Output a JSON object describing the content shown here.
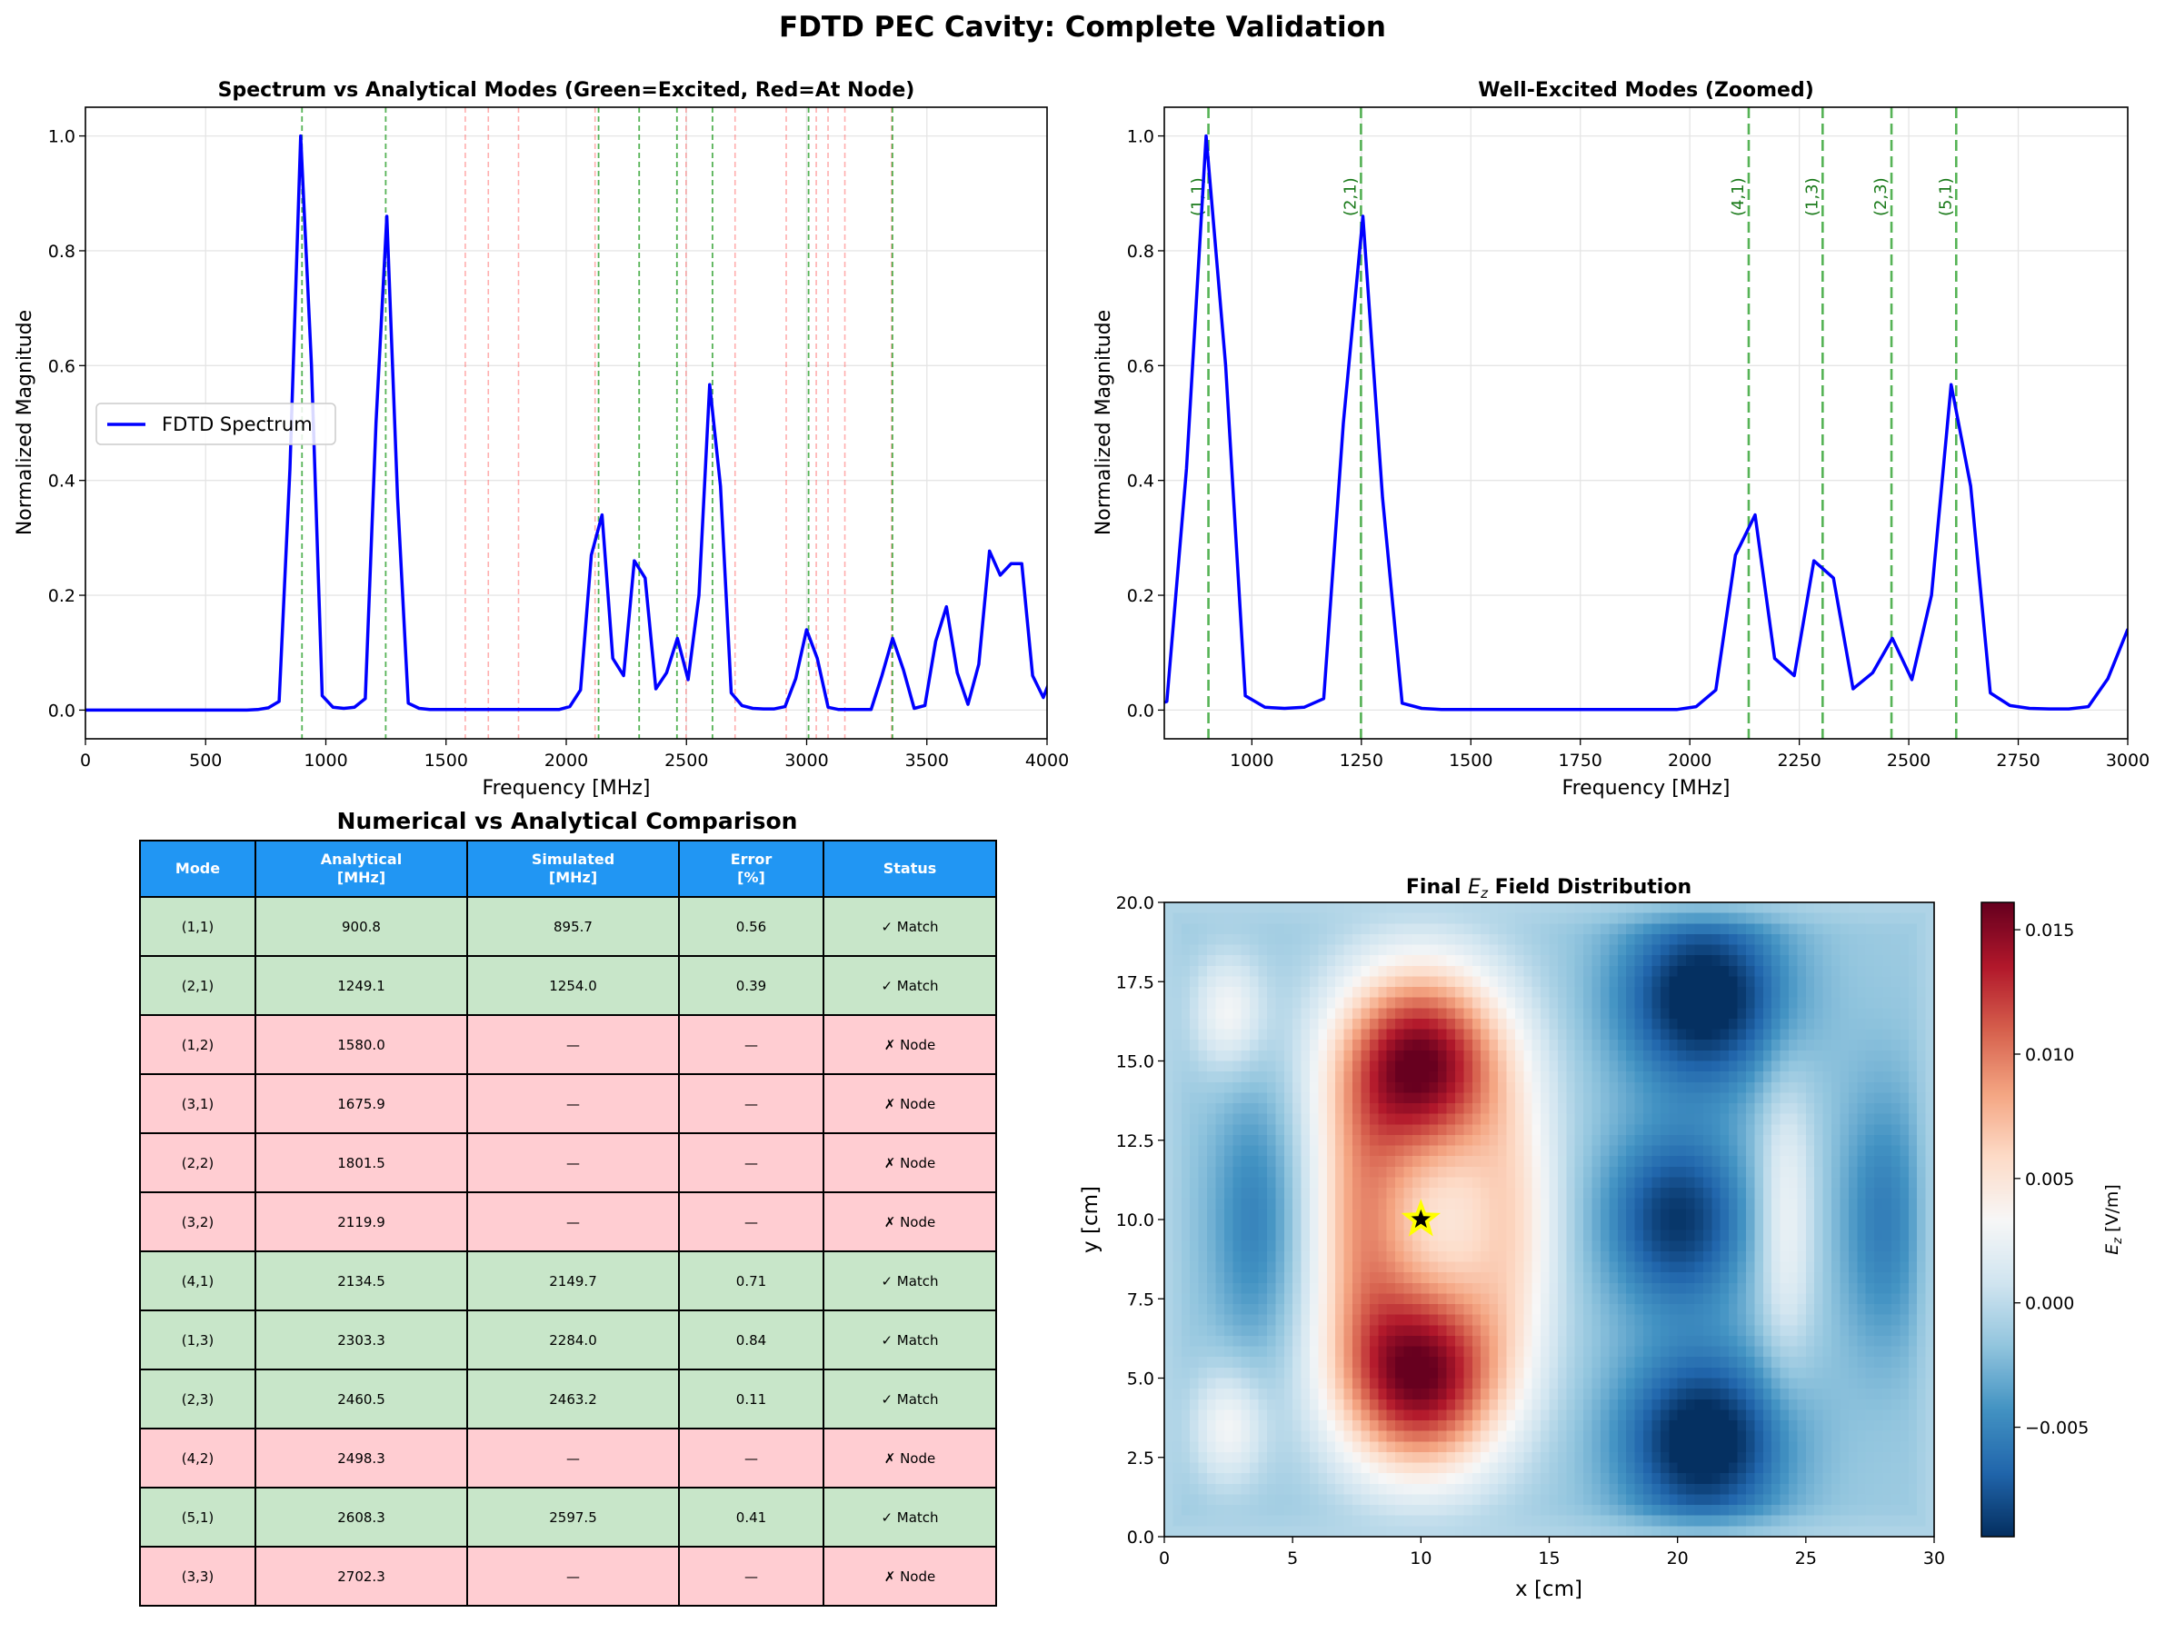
{
  "figure_title": "FDTD PEC Cavity: Complete Validation",
  "colors": {
    "spectrum": "#0000ff",
    "excited": "#2ca02c",
    "node": "#ff6b6b",
    "header": "#2196F3",
    "match_row": "#c8e6c9",
    "node_row": "#ffcdd2"
  },
  "chart_data": [
    {
      "type": "line",
      "title": "Spectrum vs Analytical Modes (Green=Excited, Red=At Node)",
      "xlabel": "Frequency [MHz]",
      "ylabel": "Normalized Magnitude",
      "xlim": [
        0,
        4000
      ],
      "ylim": [
        -0.05,
        1.05
      ],
      "xticks": [
        "0",
        "500",
        "1000",
        "1500",
        "2000",
        "2500",
        "3000",
        "3500",
        "4000"
      ],
      "xtick_values": [
        0,
        500,
        1000,
        1500,
        2000,
        2500,
        3000,
        3500,
        4000
      ],
      "yticks": [
        "0.0",
        "0.2",
        "0.4",
        "0.6",
        "0.8",
        "1.0"
      ],
      "ytick_values": [
        0,
        0.2,
        0.4,
        0.6,
        0.8,
        1.0
      ],
      "grid": true,
      "legend": {
        "label": "FDTD Spectrum",
        "position": "center-left"
      },
      "series": [
        {
          "name": "FDTD Spectrum",
          "x_start": 0,
          "x_step": 44.77,
          "values": [
            0,
            0,
            0,
            0,
            0,
            0,
            0,
            0,
            0,
            0,
            0,
            0,
            0,
            0,
            0,
            0,
            0.001,
            0.004,
            0.015,
            0.42,
            1.0,
            0.6,
            0.025,
            0.005,
            0.003,
            0.005,
            0.02,
            0.5,
            0.86,
            0.37,
            0.012,
            0.003,
            0.001,
            0.001,
            0.001,
            0.001,
            0.001,
            0.001,
            0.001,
            0.001,
            0.001,
            0.001,
            0.001,
            0.001,
            0.001,
            0.006,
            0.035,
            0.27,
            0.34,
            0.09,
            0.06,
            0.26,
            0.23,
            0.037,
            0.065,
            0.125,
            0.053,
            0.2,
            0.567,
            0.39,
            0.03,
            0.008,
            0.003,
            0.002,
            0.002,
            0.006,
            0.055,
            0.14,
            0.09,
            0.005,
            0.001,
            0.001,
            0.001,
            0.001,
            0.06,
            0.125,
            0.07,
            0.003,
            0.008,
            0.12,
            0.18,
            0.065,
            0.01,
            0.08,
            0.277,
            0.235,
            0.255,
            0.255,
            0.06,
            0.022,
            0.07
          ]
        }
      ],
      "excited_lines": [
        900.8,
        1249.1,
        2134.5,
        2303.3,
        2460.5,
        2608.3,
        3008,
        3357
      ],
      "node_lines": [
        1580.0,
        1675.9,
        1801.5,
        2119.9,
        2498.3,
        2702.3,
        2915,
        3040,
        3089,
        3159,
        3353
      ]
    },
    {
      "type": "line",
      "title": "Well-Excited Modes (Zoomed)",
      "xlabel": "Frequency [MHz]",
      "ylabel": "Normalized Magnitude",
      "xlim": [
        800,
        3000
      ],
      "ylim": [
        -0.05,
        1.05
      ],
      "xticks": [
        "1000",
        "1250",
        "1500",
        "1750",
        "2000",
        "2250",
        "2500",
        "2750",
        "3000"
      ],
      "xtick_values": [
        1000,
        1250,
        1500,
        1750,
        2000,
        2250,
        2500,
        2750,
        3000
      ],
      "yticks": [
        "0.0",
        "0.2",
        "0.4",
        "0.6",
        "0.8",
        "1.0"
      ],
      "ytick_values": [
        0,
        0.2,
        0.4,
        0.6,
        0.8,
        1.0
      ],
      "grid": true,
      "mode_lines": [
        {
          "label": "(1,1)",
          "x": 900.8
        },
        {
          "label": "(2,1)",
          "x": 1249.1
        },
        {
          "label": "(4,1)",
          "x": 2134.5
        },
        {
          "label": "(1,3)",
          "x": 2303.3
        },
        {
          "label": "(2,3)",
          "x": 2460.5
        },
        {
          "label": "(5,1)",
          "x": 2608.3
        }
      ]
    },
    {
      "type": "heatmap",
      "title_prefix": "Final",
      "title_symbol": "E",
      "title_sub": "z",
      "title_suffix": "Field Distribution",
      "xlabel": "x [cm]",
      "ylabel": "y [cm]",
      "xlim": [
        0,
        30
      ],
      "ylim": [
        0,
        20
      ],
      "xticks": [
        "0",
        "5",
        "10",
        "15",
        "20",
        "25",
        "30"
      ],
      "xtick_values": [
        0,
        5,
        10,
        15,
        20,
        25,
        30
      ],
      "yticks": [
        "0.0",
        "2.5",
        "5.0",
        "7.5",
        "10.0",
        "12.5",
        "15.0",
        "17.5",
        "20.0"
      ],
      "ytick_values": [
        0,
        2.5,
        5,
        7.5,
        10,
        12.5,
        15,
        17.5,
        20
      ],
      "colormap": "RdBu_r",
      "vmin": -0.0094,
      "vmax": 0.0161,
      "colorbar": {
        "label_symbol": "E",
        "label_sub": "z",
        "label_unit": "[V/m]",
        "ticks": [
          "−0.005",
          "0.000",
          "0.005",
          "0.010",
          "0.015"
        ],
        "tick_values": [
          -0.005,
          0,
          0.005,
          0.01,
          0.015
        ]
      },
      "source_marker": {
        "x": 10,
        "y": 10
      },
      "field_features": [
        {
          "x": 10,
          "y": 15,
          "v": 0.0165,
          "sx": 2.3,
          "sy": 2.1
        },
        {
          "x": 10,
          "y": 5,
          "v": 0.0165,
          "sx": 2.3,
          "sy": 2.1
        },
        {
          "x": 7.6,
          "y": 10,
          "v": 0.007,
          "sx": 1.3,
          "sy": 3.0
        },
        {
          "x": 13.6,
          "y": 10,
          "v": 0.0055,
          "sx": 1.3,
          "sy": 3.0
        },
        {
          "x": 10,
          "y": 10,
          "v": 0.004,
          "sx": 2.5,
          "sy": 3
        },
        {
          "x": 21,
          "y": 17,
          "v": -0.0095,
          "sx": 2.3,
          "sy": 2.0
        },
        {
          "x": 21,
          "y": 3,
          "v": -0.0095,
          "sx": 2.3,
          "sy": 2.0
        },
        {
          "x": 20,
          "y": 10,
          "v": -0.0078,
          "sx": 2.0,
          "sy": 2.0
        },
        {
          "x": 3.5,
          "y": 10,
          "v": -0.004,
          "sx": 1.2,
          "sy": 3.0
        },
        {
          "x": 28,
          "y": 10,
          "v": -0.0042,
          "sx": 1.2,
          "sy": 3.0
        },
        {
          "x": 2.5,
          "y": 16.5,
          "v": 0.0045,
          "sx": 1.0,
          "sy": 1.3
        },
        {
          "x": 2.5,
          "y": 3.5,
          "v": 0.0045,
          "sx": 1.0,
          "sy": 1.3
        },
        {
          "x": 24.2,
          "y": 10,
          "v": 0.0045,
          "sx": 0.8,
          "sy": 3.2
        }
      ],
      "background_value": -0.0013
    }
  ],
  "table": {
    "title": "Numerical vs Analytical Comparison",
    "headers": [
      "Mode",
      "Analytical\n[MHz]",
      "Simulated\n[MHz]",
      "Error\n[%]",
      "Status"
    ],
    "rows": [
      {
        "mode": "(1,1)",
        "analytical": "900.8",
        "simulated": "895.7",
        "error": "0.56",
        "status": "✓ Match",
        "kind": "match"
      },
      {
        "mode": "(2,1)",
        "analytical": "1249.1",
        "simulated": "1254.0",
        "error": "0.39",
        "status": "✓ Match",
        "kind": "match"
      },
      {
        "mode": "(1,2)",
        "analytical": "1580.0",
        "simulated": "—",
        "error": "—",
        "status": "✗ Node",
        "kind": "node"
      },
      {
        "mode": "(3,1)",
        "analytical": "1675.9",
        "simulated": "—",
        "error": "—",
        "status": "✗ Node",
        "kind": "node"
      },
      {
        "mode": "(2,2)",
        "analytical": "1801.5",
        "simulated": "—",
        "error": "—",
        "status": "✗ Node",
        "kind": "node"
      },
      {
        "mode": "(3,2)",
        "analytical": "2119.9",
        "simulated": "—",
        "error": "—",
        "status": "✗ Node",
        "kind": "node"
      },
      {
        "mode": "(4,1)",
        "analytical": "2134.5",
        "simulated": "2149.7",
        "error": "0.71",
        "status": "✓ Match",
        "kind": "match"
      },
      {
        "mode": "(1,3)",
        "analytical": "2303.3",
        "simulated": "2284.0",
        "error": "0.84",
        "status": "✓ Match",
        "kind": "match"
      },
      {
        "mode": "(2,3)",
        "analytical": "2460.5",
        "simulated": "2463.2",
        "error": "0.11",
        "status": "✓ Match",
        "kind": "match"
      },
      {
        "mode": "(4,2)",
        "analytical": "2498.3",
        "simulated": "—",
        "error": "—",
        "status": "✗ Node",
        "kind": "node"
      },
      {
        "mode": "(5,1)",
        "analytical": "2608.3",
        "simulated": "2597.5",
        "error": "0.41",
        "status": "✓ Match",
        "kind": "match"
      },
      {
        "mode": "(3,3)",
        "analytical": "2702.3",
        "simulated": "—",
        "error": "—",
        "status": "✗ Node",
        "kind": "node"
      }
    ]
  }
}
